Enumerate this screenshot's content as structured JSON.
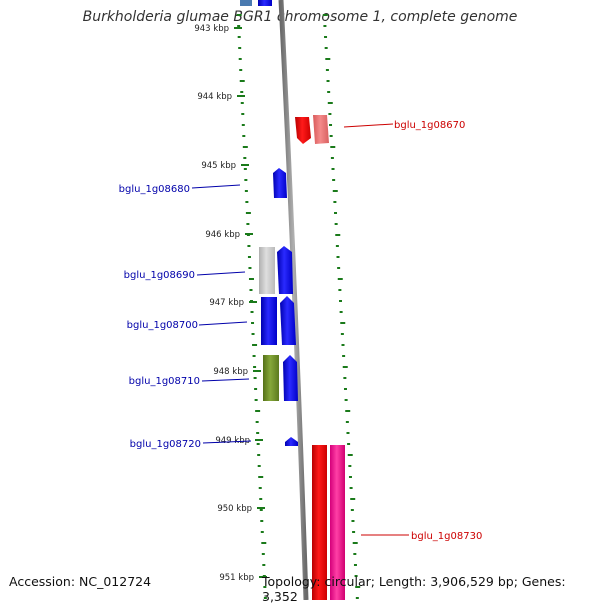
{
  "title": "Burkholderia glumae BGR1 chromosome 1, complete genome",
  "footer": {
    "accession": "Accession: NC_012724",
    "topology": "Topology: circular; Length: 3,906,529 bp; Genes: 3,352"
  },
  "axis": {
    "unit": "kbp",
    "ticks": [
      {
        "label": "943 kbp"
      },
      {
        "label": "944 kbp"
      },
      {
        "label": "945 kbp"
      },
      {
        "label": "946 kbp"
      },
      {
        "label": "947 kbp"
      },
      {
        "label": "948 kbp"
      },
      {
        "label": "949 kbp"
      },
      {
        "label": "950 kbp"
      },
      {
        "label": "951 kbp"
      }
    ]
  },
  "genes": [
    {
      "name": "bglu_1g08670",
      "color": "#cc0000",
      "side": "right"
    },
    {
      "name": "bglu_1g08680",
      "color": "#0000aa",
      "side": "left"
    },
    {
      "name": "bglu_1g08690",
      "color": "#0000aa",
      "side": "left"
    },
    {
      "name": "bglu_1g08700",
      "color": "#0000aa",
      "side": "left"
    },
    {
      "name": "bglu_1g08710",
      "color": "#0000aa",
      "side": "left"
    },
    {
      "name": "bglu_1g08720",
      "color": "#0000aa",
      "side": "left"
    },
    {
      "name": "bglu_1g08730",
      "color": "#cc0000",
      "side": "right"
    }
  ],
  "colors": {
    "track_dots": "#1a7a1a",
    "backbone": "#888888",
    "forward_gene": "#0000ff",
    "reverse_gene": "#ff0000",
    "reverse_gene_light": "#f07070",
    "pink_gene": "#ff1493",
    "olive_gene": "#6b8e23",
    "grey_gene": "#c8c8c8"
  }
}
